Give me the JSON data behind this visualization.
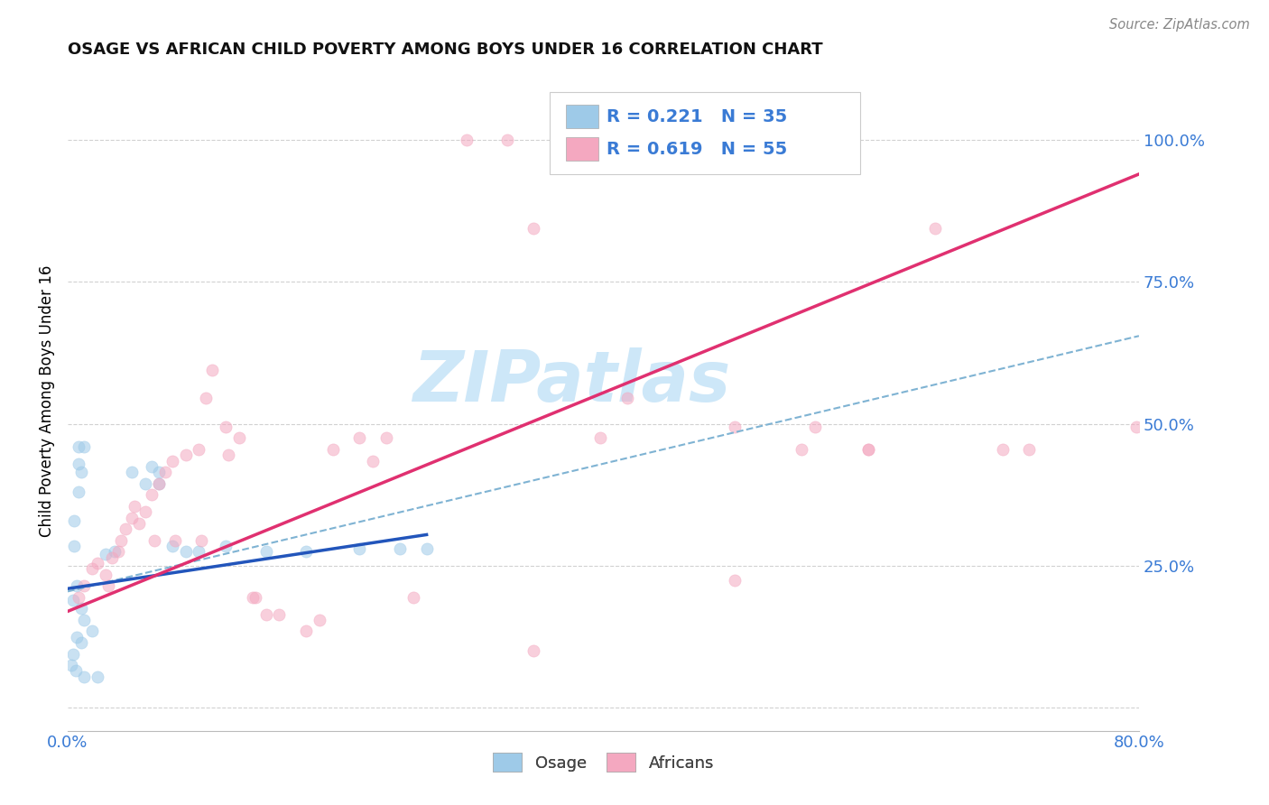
{
  "title": "OSAGE VS AFRICAN CHILD POVERTY AMONG BOYS UNDER 16 CORRELATION CHART",
  "source": "Source: ZipAtlas.com",
  "ylabel": "Child Poverty Among Boys Under 16",
  "xlim": [
    0.0,
    0.8
  ],
  "ylim": [
    -0.04,
    1.12
  ],
  "yticks": [
    0.0,
    0.25,
    0.5,
    0.75,
    1.0
  ],
  "ytick_labels": [
    "",
    "25.0%",
    "50.0%",
    "75.0%",
    "100.0%"
  ],
  "xticks": [
    0.0,
    0.1,
    0.2,
    0.3,
    0.4,
    0.5,
    0.6,
    0.7,
    0.8
  ],
  "grid_color": "#cccccc",
  "watermark": "ZIPatlas",
  "watermark_color": "#c5e3f7",
  "legend_color": "#3a7bd5",
  "osage_color": "#9ecae8",
  "african_color": "#f4a8c0",
  "osage_line_color": "#2255bb",
  "african_line_color": "#e03070",
  "dashed_line_color": "#7fb3d3",
  "scatter_alpha": 0.55,
  "scatter_size": 90,
  "osage_scatter": [
    [
      0.005,
      0.285
    ],
    [
      0.008,
      0.46
    ],
    [
      0.012,
      0.46
    ],
    [
      0.008,
      0.43
    ],
    [
      0.01,
      0.415
    ],
    [
      0.008,
      0.38
    ],
    [
      0.005,
      0.33
    ],
    [
      0.004,
      0.19
    ],
    [
      0.007,
      0.215
    ],
    [
      0.01,
      0.175
    ],
    [
      0.012,
      0.155
    ],
    [
      0.018,
      0.135
    ],
    [
      0.01,
      0.115
    ],
    [
      0.007,
      0.125
    ],
    [
      0.004,
      0.095
    ],
    [
      0.003,
      0.075
    ],
    [
      0.006,
      0.065
    ],
    [
      0.012,
      0.055
    ],
    [
      0.022,
      0.055
    ],
    [
      0.028,
      0.27
    ],
    [
      0.035,
      0.275
    ],
    [
      0.048,
      0.415
    ],
    [
      0.058,
      0.395
    ],
    [
      0.063,
      0.425
    ],
    [
      0.068,
      0.415
    ],
    [
      0.068,
      0.395
    ],
    [
      0.078,
      0.285
    ],
    [
      0.088,
      0.275
    ],
    [
      0.098,
      0.275
    ],
    [
      0.118,
      0.285
    ],
    [
      0.148,
      0.275
    ],
    [
      0.178,
      0.275
    ],
    [
      0.218,
      0.28
    ],
    [
      0.248,
      0.28
    ],
    [
      0.268,
      0.28
    ]
  ],
  "african_scatter": [
    [
      0.008,
      0.195
    ],
    [
      0.012,
      0.215
    ],
    [
      0.018,
      0.245
    ],
    [
      0.022,
      0.255
    ],
    [
      0.028,
      0.235
    ],
    [
      0.03,
      0.215
    ],
    [
      0.033,
      0.265
    ],
    [
      0.038,
      0.275
    ],
    [
      0.04,
      0.295
    ],
    [
      0.043,
      0.315
    ],
    [
      0.048,
      0.335
    ],
    [
      0.05,
      0.355
    ],
    [
      0.053,
      0.325
    ],
    [
      0.058,
      0.345
    ],
    [
      0.063,
      0.375
    ],
    [
      0.065,
      0.295
    ],
    [
      0.068,
      0.395
    ],
    [
      0.073,
      0.415
    ],
    [
      0.078,
      0.435
    ],
    [
      0.08,
      0.295
    ],
    [
      0.088,
      0.445
    ],
    [
      0.098,
      0.455
    ],
    [
      0.1,
      0.295
    ],
    [
      0.103,
      0.545
    ],
    [
      0.108,
      0.595
    ],
    [
      0.118,
      0.495
    ],
    [
      0.12,
      0.445
    ],
    [
      0.128,
      0.475
    ],
    [
      0.138,
      0.195
    ],
    [
      0.14,
      0.195
    ],
    [
      0.148,
      0.165
    ],
    [
      0.158,
      0.165
    ],
    [
      0.178,
      0.135
    ],
    [
      0.188,
      0.155
    ],
    [
      0.198,
      0.455
    ],
    [
      0.218,
      0.475
    ],
    [
      0.228,
      0.435
    ],
    [
      0.238,
      0.475
    ],
    [
      0.258,
      0.195
    ],
    [
      0.298,
      1.0
    ],
    [
      0.328,
      1.0
    ],
    [
      0.348,
      0.845
    ],
    [
      0.348,
      0.1
    ],
    [
      0.398,
      0.475
    ],
    [
      0.418,
      0.545
    ],
    [
      0.498,
      0.495
    ],
    [
      0.498,
      0.225
    ],
    [
      0.548,
      0.455
    ],
    [
      0.558,
      0.495
    ],
    [
      0.598,
      0.455
    ],
    [
      0.648,
      0.845
    ],
    [
      0.698,
      0.455
    ],
    [
      0.718,
      0.455
    ],
    [
      0.598,
      0.455
    ],
    [
      0.798,
      0.495
    ]
  ],
  "osage_trend_x": [
    0.0,
    0.268
  ],
  "osage_trend_y": [
    0.21,
    0.305
  ],
  "african_trend_x": [
    0.0,
    0.8
  ],
  "african_trend_y": [
    0.17,
    0.94
  ],
  "dashed_trend_x": [
    0.0,
    0.8
  ],
  "dashed_trend_y": [
    0.205,
    0.655
  ]
}
